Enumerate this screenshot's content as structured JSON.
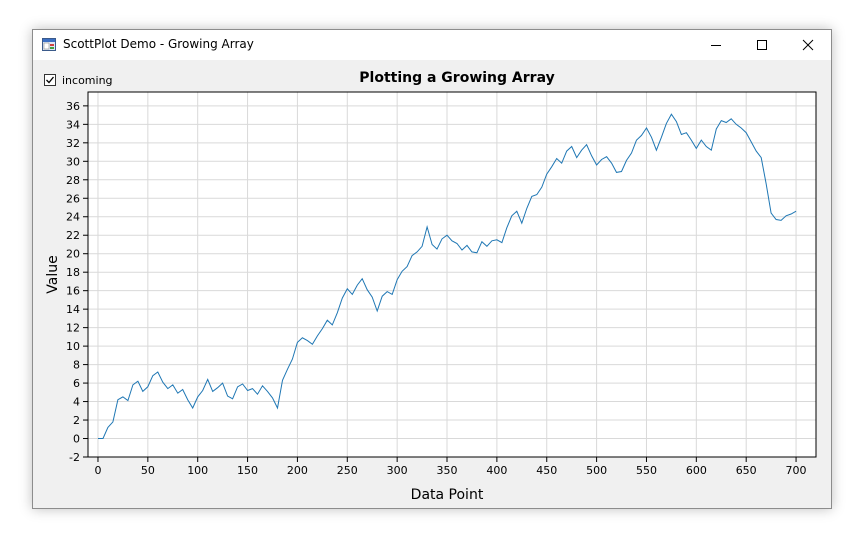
{
  "window": {
    "title": "ScottPlot Demo - Growing Array",
    "icon": "app-window-icon",
    "controls": [
      "minimize-icon",
      "maximize-icon",
      "close-icon"
    ]
  },
  "controls": {
    "incoming_label": "incoming",
    "incoming_checked": true
  },
  "chart_data": {
    "type": "line",
    "title": "Plotting a Growing Array",
    "xlabel": "Data Point",
    "ylabel": "Value",
    "xlim": [
      -10,
      720
    ],
    "ylim": [
      -2,
      37.5
    ],
    "xticks": [
      0,
      50,
      100,
      150,
      200,
      250,
      300,
      350,
      400,
      450,
      500,
      550,
      600,
      650,
      700
    ],
    "yticks": [
      -2,
      0,
      2,
      4,
      6,
      8,
      10,
      12,
      14,
      16,
      18,
      20,
      22,
      24,
      26,
      28,
      30,
      32,
      34,
      36
    ],
    "grid": true,
    "series_color": "#1f77b4",
    "x": [
      0,
      5,
      10,
      15,
      20,
      25,
      30,
      35,
      40,
      45,
      50,
      55,
      60,
      65,
      70,
      75,
      80,
      85,
      90,
      95,
      100,
      105,
      110,
      115,
      120,
      125,
      130,
      135,
      140,
      145,
      150,
      155,
      160,
      165,
      170,
      175,
      180,
      185,
      190,
      195,
      200,
      205,
      210,
      215,
      220,
      225,
      230,
      235,
      240,
      245,
      250,
      255,
      260,
      265,
      270,
      275,
      280,
      285,
      290,
      295,
      300,
      305,
      310,
      315,
      320,
      325,
      330,
      335,
      340,
      345,
      350,
      355,
      360,
      365,
      370,
      375,
      380,
      385,
      390,
      395,
      400,
      405,
      410,
      415,
      420,
      425,
      430,
      435,
      440,
      445,
      450,
      455,
      460,
      465,
      470,
      475,
      480,
      485,
      490,
      495,
      500,
      505,
      510,
      515,
      520,
      525,
      530,
      535,
      540,
      545,
      550,
      555,
      560,
      565,
      570,
      575,
      580,
      585,
      590,
      595,
      600,
      605,
      610,
      615,
      620,
      625,
      630,
      635,
      640,
      645,
      650,
      655,
      660,
      665,
      670,
      675,
      680,
      685,
      690,
      695,
      700
    ],
    "y": [
      0,
      0,
      1.2,
      1.8,
      4.2,
      4.5,
      4.1,
      5.8,
      6.2,
      5.1,
      5.6,
      6.8,
      7.2,
      6.1,
      5.4,
      5.8,
      4.9,
      5.3,
      4.2,
      3.3,
      4.5,
      5.2,
      6.4,
      5.1,
      5.5,
      6.0,
      4.6,
      4.3,
      5.6,
      5.9,
      5.2,
      5.4,
      4.8,
      5.7,
      5.1,
      4.4,
      3.3,
      6.3,
      7.5,
      8.6,
      10.4,
      10.9,
      10.6,
      10.2,
      11.1,
      11.9,
      12.8,
      12.3,
      13.6,
      15.2,
      16.2,
      15.6,
      16.6,
      17.3,
      16.1,
      15.3,
      13.8,
      15.4,
      15.9,
      15.6,
      17.2,
      18.1,
      18.6,
      19.8,
      20.2,
      20.8,
      22.9,
      21.0,
      20.5,
      21.6,
      22.0,
      21.4,
      21.1,
      20.4,
      20.9,
      20.2,
      20.1,
      21.3,
      20.8,
      21.4,
      21.5,
      21.2,
      22.8,
      24.1,
      24.6,
      23.3,
      24.9,
      26.2,
      26.4,
      27.2,
      28.6,
      29.4,
      30.3,
      29.8,
      31.1,
      31.6,
      30.4,
      31.2,
      31.8,
      30.6,
      29.6,
      30.2,
      30.5,
      29.8,
      28.8,
      28.9,
      30.1,
      30.9,
      32.3,
      32.8,
      33.6,
      32.6,
      31.2,
      32.6,
      34.1,
      35.1,
      34.3,
      32.9,
      33.1,
      32.3,
      31.4,
      32.3,
      31.6,
      31.2,
      33.5,
      34.4,
      34.2,
      34.6,
      34.0,
      33.6,
      33.1,
      32.1,
      31.1,
      30.4,
      27.6,
      24.4,
      23.7,
      23.6,
      24.1,
      24.3,
      24.6
    ]
  }
}
